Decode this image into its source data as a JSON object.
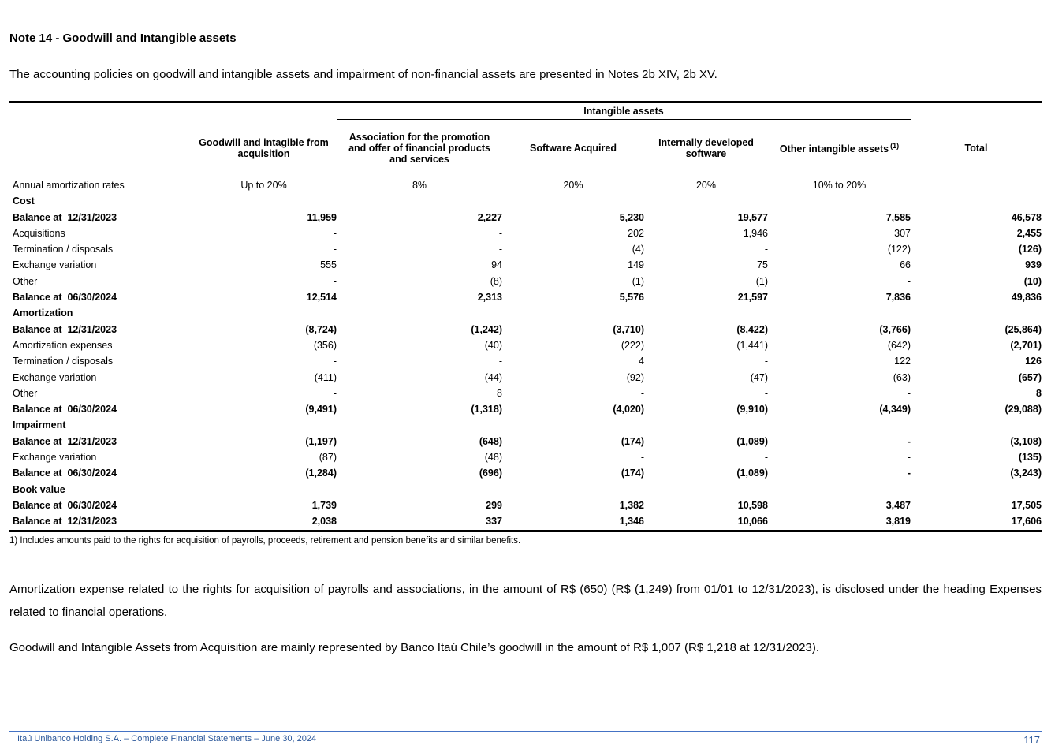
{
  "colors": {
    "footer_text": "#2B579A",
    "footer_line": "#4472C4"
  },
  "page": {
    "title": "Note 14 - Goodwill and Intangible assets",
    "intro": "The accounting policies on goodwill and intangible assets and impairment of non-financial assets are presented in Notes 2b XIV, 2b XV.",
    "footnote": "1) Includes amounts paid to the rights for acquisition of payrolls, proceeds, retirement and pension benefits and similar benefits.",
    "paragraph1": "Amortization expense related to the rights for acquisition of payrolls and associations, in the amount of R$ (650) (R$ (1,249) from 01/01 to 12/31/2023), is disclosed under the heading Expenses related to financial operations.",
    "paragraph2": "Goodwill and Intangible Assets from Acquisition are mainly represented by Banco Itaú Chile’s goodwill in the amount of R$ 1,007 (R$ 1,218 at 12/31/2023)."
  },
  "table": {
    "group_header": "Intangible assets",
    "headers": {
      "goodwill": "Goodwill and intagible from acquisition",
      "association": "Association for the promotion and offer of financial products and services",
      "software": "Software Acquired",
      "internal": "Internally developed software",
      "other": "Other intangible assets",
      "other_sup": "(1)",
      "total": "Total"
    },
    "rows": [
      {
        "type": "rate",
        "label": "Annual amortization rates",
        "values": [
          "Up to 20%",
          "8%",
          "20%",
          "20%",
          "10% to 20%",
          ""
        ]
      },
      {
        "type": "section",
        "label": "Cost"
      },
      {
        "type": "balance",
        "label": "Balance at  12/31/2023",
        "values": [
          "11,959",
          "2,227",
          "5,230",
          "19,577",
          "7,585",
          "46,578"
        ]
      },
      {
        "type": "data",
        "label": "Acquisitions",
        "values": [
          "-",
          "-",
          "202",
          "1,946",
          "307",
          "2,455"
        ]
      },
      {
        "type": "data",
        "label": "Termination / disposals",
        "values": [
          "-",
          "-",
          "(4)",
          "-",
          "(122)",
          "(126)"
        ]
      },
      {
        "type": "data",
        "label": "Exchange variation",
        "values": [
          "555",
          "94",
          "149",
          "75",
          "66",
          "939"
        ]
      },
      {
        "type": "data",
        "label": "Other",
        "values": [
          "-",
          "(8)",
          "(1)",
          "(1)",
          "-",
          "(10)"
        ]
      },
      {
        "type": "balance",
        "label": "Balance at  06/30/2024",
        "values": [
          "12,514",
          "2,313",
          "5,576",
          "21,597",
          "7,836",
          "49,836"
        ]
      },
      {
        "type": "section",
        "label": "Amortization"
      },
      {
        "type": "balance",
        "label": "Balance at  12/31/2023",
        "values": [
          "(8,724)",
          "(1,242)",
          "(3,710)",
          "(8,422)",
          "(3,766)",
          "(25,864)"
        ]
      },
      {
        "type": "data",
        "label": "Amortization expenses",
        "values": [
          "(356)",
          "(40)",
          "(222)",
          "(1,441)",
          "(642)",
          "(2,701)"
        ]
      },
      {
        "type": "data",
        "label": "Termination / disposals",
        "values": [
          "-",
          "-",
          "4",
          "-",
          "122",
          "126"
        ]
      },
      {
        "type": "data",
        "label": "Exchange variation",
        "values": [
          "(411)",
          "(44)",
          "(92)",
          "(47)",
          "(63)",
          "(657)"
        ]
      },
      {
        "type": "data",
        "label": "Other",
        "values": [
          "-",
          "8",
          "-",
          "-",
          "-",
          "8"
        ]
      },
      {
        "type": "balance",
        "label": "Balance at  06/30/2024",
        "values": [
          "(9,491)",
          "(1,318)",
          "(4,020)",
          "(9,910)",
          "(4,349)",
          "(29,088)"
        ]
      },
      {
        "type": "section",
        "label": "Impairment"
      },
      {
        "type": "balance",
        "label": "Balance at  12/31/2023",
        "values": [
          "(1,197)",
          "(648)",
          "(174)",
          "(1,089)",
          "-",
          "(3,108)"
        ]
      },
      {
        "type": "data",
        "label": "Exchange variation",
        "values": [
          "(87)",
          "(48)",
          "-",
          "-",
          "-",
          "(135)"
        ]
      },
      {
        "type": "balance",
        "label": "Balance at  06/30/2024",
        "values": [
          "(1,284)",
          "(696)",
          "(174)",
          "(1,089)",
          "-",
          "(3,243)"
        ]
      },
      {
        "type": "section",
        "label": "Book value"
      },
      {
        "type": "balance",
        "label": "Balance at  06/30/2024",
        "values": [
          "1,739",
          "299",
          "1,382",
          "10,598",
          "3,487",
          "17,505"
        ]
      },
      {
        "type": "balance",
        "label": "Balance at  12/31/2023",
        "values": [
          "2,038",
          "337",
          "1,346",
          "10,066",
          "3,819",
          "17,606"
        ]
      }
    ]
  },
  "footer": {
    "text": "Itaú Unibanco Holding S.A. – Complete Financial Statements – June 30, 2024",
    "page_number": "117"
  }
}
